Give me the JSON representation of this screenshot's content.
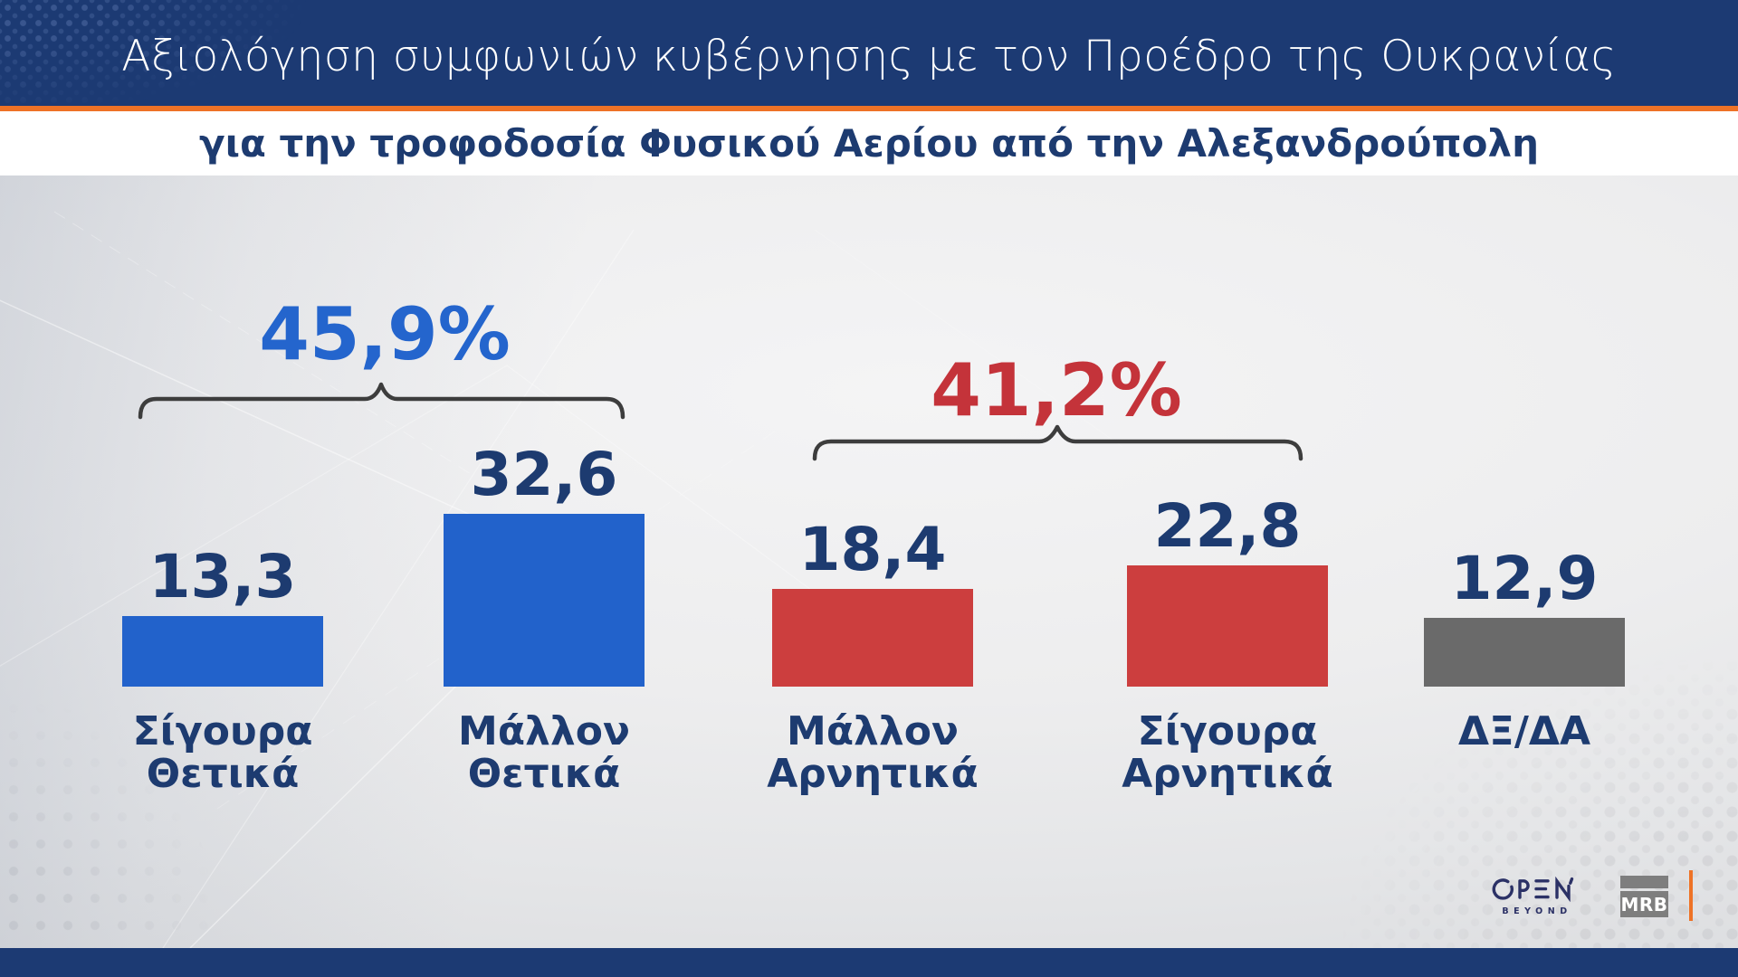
{
  "header": {
    "title": "Αξιολόγηση συμφωνιών κυβέρνησης με τον Προέδρο της Ουκρανίας",
    "subtitle": "για την τροφοδοσία Φυσικού Αερίου από την Αλεξανδρούπολη"
  },
  "chart_data": {
    "type": "bar",
    "title": "Αξιολόγηση συμφωνιών κυβέρνησης με τον Προέδρο της Ουκρανίας για την τροφοδοσία Φυσικού Αερίου από την Αλεξανδρούπολη",
    "categories": [
      "Σίγουρα Θετικά",
      "Μάλλον Θετικά",
      "Μάλλον Αρνητικά",
      "Σίγουρα Αρνητικά",
      "ΔΞ/ΔΑ"
    ],
    "values": [
      13.3,
      32.6,
      18.4,
      22.8,
      12.9
    ],
    "value_labels": [
      "13,3",
      "32,6",
      "18,4",
      "22,8",
      "12,9"
    ],
    "bar_colors": [
      "#2262cb",
      "#2262cb",
      "#cc3e3e",
      "#cc3e3e",
      "#6a6a6a"
    ],
    "ylim": [
      0,
      35
    ],
    "grid": false,
    "legend": "none",
    "groups": [
      {
        "label": "45,9%",
        "value": 45.9,
        "color": "#2465cd",
        "spans": [
          "Σίγουρα Θετικά",
          "Μάλλον Θετικά"
        ]
      },
      {
        "label": "41,2%",
        "value": 41.2,
        "color": "#c4333a",
        "spans": [
          "Μάλλον Αρνητικά",
          "Σίγουρα Αρνητικά"
        ]
      }
    ]
  },
  "branding": {
    "channel": "OPEN",
    "channel_tagline": "BEYOND",
    "agency": "MRB"
  },
  "colors": {
    "header_bg": "#1c3a73",
    "footer_bg": "#1c3a73",
    "accent_orange": "#ee7226",
    "text_navy": "#1d3b70",
    "bracket": "#3d3d3d",
    "positive_blue": "#2262cb",
    "negative_red": "#cc3e3e",
    "neutral_gray": "#6a6a6a"
  }
}
